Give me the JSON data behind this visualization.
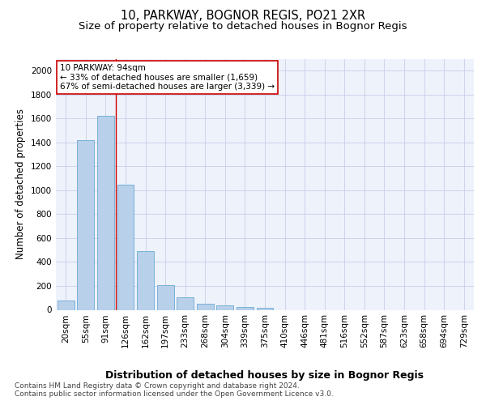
{
  "title": "10, PARKWAY, BOGNOR REGIS, PO21 2XR",
  "subtitle": "Size of property relative to detached houses in Bognor Regis",
  "xlabel": "Distribution of detached houses by size in Bognor Regis",
  "ylabel": "Number of detached properties",
  "footer_line1": "Contains HM Land Registry data © Crown copyright and database right 2024.",
  "footer_line2": "Contains public sector information licensed under the Open Government Licence v3.0.",
  "bar_labels": [
    "20sqm",
    "55sqm",
    "91sqm",
    "126sqm",
    "162sqm",
    "197sqm",
    "233sqm",
    "268sqm",
    "304sqm",
    "339sqm",
    "375sqm",
    "410sqm",
    "446sqm",
    "481sqm",
    "516sqm",
    "552sqm",
    "587sqm",
    "623sqm",
    "658sqm",
    "694sqm",
    "729sqm"
  ],
  "bar_values": [
    80,
    1420,
    1620,
    1050,
    490,
    205,
    105,
    48,
    35,
    22,
    18,
    0,
    0,
    0,
    0,
    0,
    0,
    0,
    0,
    0,
    0
  ],
  "bar_color": "#b8d0ea",
  "bar_edge_color": "#6aaad4",
  "background_color": "#eef2fb",
  "grid_color": "#c8cfe8",
  "annotation_line1": "10 PARKWAY: 94sqm",
  "annotation_line2": "← 33% of detached houses are smaller (1,659)",
  "annotation_line3": "67% of semi-detached houses are larger (3,339) →",
  "marker_line_color": "#cc0000",
  "annotation_box_color": "#ffffff",
  "annotation_box_edge_color": "#cc0000",
  "ylim": [
    0,
    2100
  ],
  "yticks": [
    0,
    200,
    400,
    600,
    800,
    1000,
    1200,
    1400,
    1600,
    1800,
    2000
  ],
  "title_fontsize": 10.5,
  "subtitle_fontsize": 9.5,
  "xlabel_fontsize": 9,
  "ylabel_fontsize": 8.5,
  "tick_fontsize": 7.5,
  "annotation_fontsize": 7.5,
  "footer_fontsize": 6.5
}
